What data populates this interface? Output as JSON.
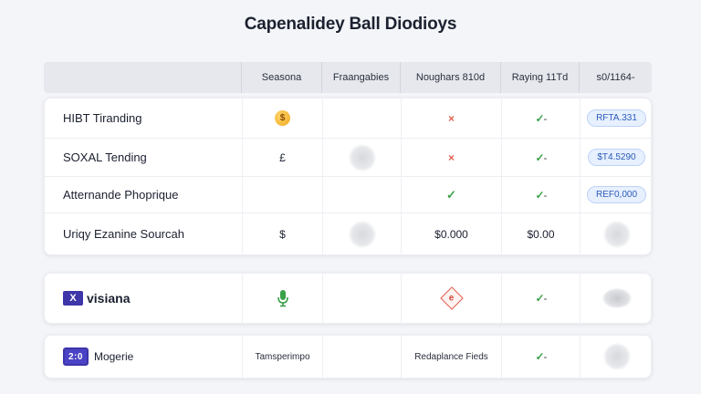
{
  "title": "Capenalidey Ball Diodioys",
  "columns": [
    "",
    "Seasona",
    "Fraangabies",
    "Noughars 810d",
    "Raying 11Td",
    "s0/1164-"
  ],
  "rows": [
    {
      "name": "HIBT Tiranding",
      "c1_symbol": "$",
      "c3_symbol": "×",
      "c4_symbol": "✓",
      "c4_suffix": "-",
      "c5_badge": "RFTA.331"
    },
    {
      "name": "SOXAL Tending",
      "c1_text": "£",
      "c3_symbol": "×",
      "c4_symbol": "✓",
      "c4_suffix": "-",
      "c5_badge": "$T4.5290"
    },
    {
      "name": "Atternande Phoprique",
      "c3_symbol": "✓",
      "c4_symbol": "✓",
      "c4_suffix": "-",
      "c5_badge": "REF0,000"
    },
    {
      "name": "Uriqy Ezanine Sourcah",
      "c1_text": "$",
      "c3_text": "$0.000",
      "c4_text": "$0.00"
    }
  ],
  "card2": {
    "logo_mark": "X",
    "name": "visiana",
    "c4_symbol": "✓",
    "c4_suffix": "-"
  },
  "card3": {
    "logo_mark": "2:0",
    "name": "Mogerie",
    "c1_text": "Tamsperimpo",
    "c3_text": "Redaplance Fieds",
    "c4_symbol": "✓",
    "c4_suffix": "-"
  },
  "icons": {
    "coin": "coin-icon",
    "cross": "x-icon",
    "check": "check-icon",
    "mic": "microphone-icon",
    "diamond": "diamond-icon",
    "blob": "blurred-icon"
  },
  "colors": {
    "accent": "#3d35a8",
    "check": "#3aa14a",
    "cross": "#e0604f",
    "badge": "#2c5bb8"
  }
}
